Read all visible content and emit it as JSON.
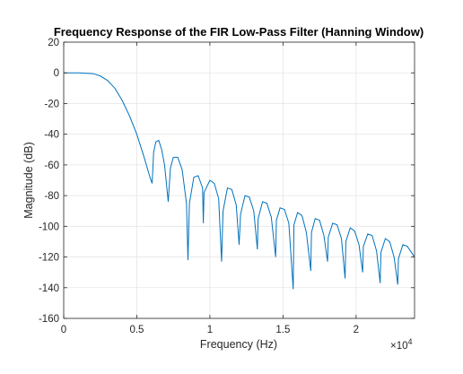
{
  "chart_data": {
    "type": "line",
    "title": "Frequency Response of the FIR Low-Pass Filter (Hanning Window)",
    "xlabel": "Frequency (Hz)",
    "ylabel": "Magnitude (dB)",
    "x_exponent_label": "×10",
    "x_exponent_power": "4",
    "xlim": [
      0,
      24000
    ],
    "ylim": [
      -160,
      20
    ],
    "x_ticks": [
      0,
      5000,
      10000,
      15000,
      20000
    ],
    "x_tick_labels": [
      "0",
      "0.5",
      "1",
      "1.5",
      "2"
    ],
    "y_ticks": [
      20,
      0,
      -20,
      -40,
      -60,
      -80,
      -100,
      -120,
      -140,
      -160
    ],
    "y_tick_labels": [
      "20",
      "0",
      "-20",
      "-40",
      "-60",
      "-80",
      "-100",
      "-120",
      "-140",
      "-160"
    ],
    "grid": true,
    "line_color": "#0072BD",
    "series": [
      {
        "x": [
          0,
          1000,
          2000,
          2500,
          3000,
          3500,
          4000,
          4500,
          5000,
          5500,
          5900,
          6050,
          6150,
          6300,
          6500,
          6700,
          6900,
          7150,
          7300,
          7500,
          7800,
          8100,
          8400,
          8500,
          8600,
          8900,
          9200,
          9500,
          9550,
          9600,
          10000,
          10300,
          10600,
          10800,
          10900,
          11200,
          11500,
          11800,
          12000,
          12100,
          12400,
          12700,
          13000,
          13250,
          13300,
          13600,
          13900,
          14200,
          14500,
          14550,
          14800,
          15100,
          15400,
          15700,
          15750,
          16000,
          16300,
          16600,
          16900,
          16950,
          17200,
          17500,
          17800,
          18050,
          18100,
          18400,
          18700,
          19000,
          19250,
          19300,
          19600,
          19900,
          20200,
          20450,
          20500,
          20800,
          21100,
          21400,
          21650,
          21700,
          22000,
          22300,
          22600,
          22850,
          22900,
          23200,
          23500,
          24000
        ],
        "y": [
          0,
          0,
          -0.5,
          -2,
          -5,
          -10,
          -18,
          -28,
          -40,
          -55,
          -68,
          -72,
          -52,
          -45,
          -44,
          -50,
          -60,
          -84,
          -62,
          -55,
          -55,
          -63,
          -85,
          -122,
          -85,
          -68,
          -67,
          -75,
          -98,
          -78,
          -70,
          -72,
          -82,
          -123,
          -90,
          -75,
          -76,
          -86,
          -112,
          -92,
          -80,
          -81,
          -90,
          -115,
          -95,
          -84,
          -85,
          -94,
          -120,
          -96,
          -88,
          -89,
          -98,
          -141,
          -99,
          -91,
          -93,
          -104,
          -129,
          -104,
          -95,
          -96,
          -106,
          -123,
          -107,
          -98,
          -99,
          -108,
          -134,
          -110,
          -101,
          -103,
          -112,
          -130,
          -113,
          -105,
          -106,
          -116,
          -137,
          -117,
          -108,
          -110,
          -120,
          -138,
          -121,
          -112,
          -113,
          -120
        ]
      }
    ]
  }
}
